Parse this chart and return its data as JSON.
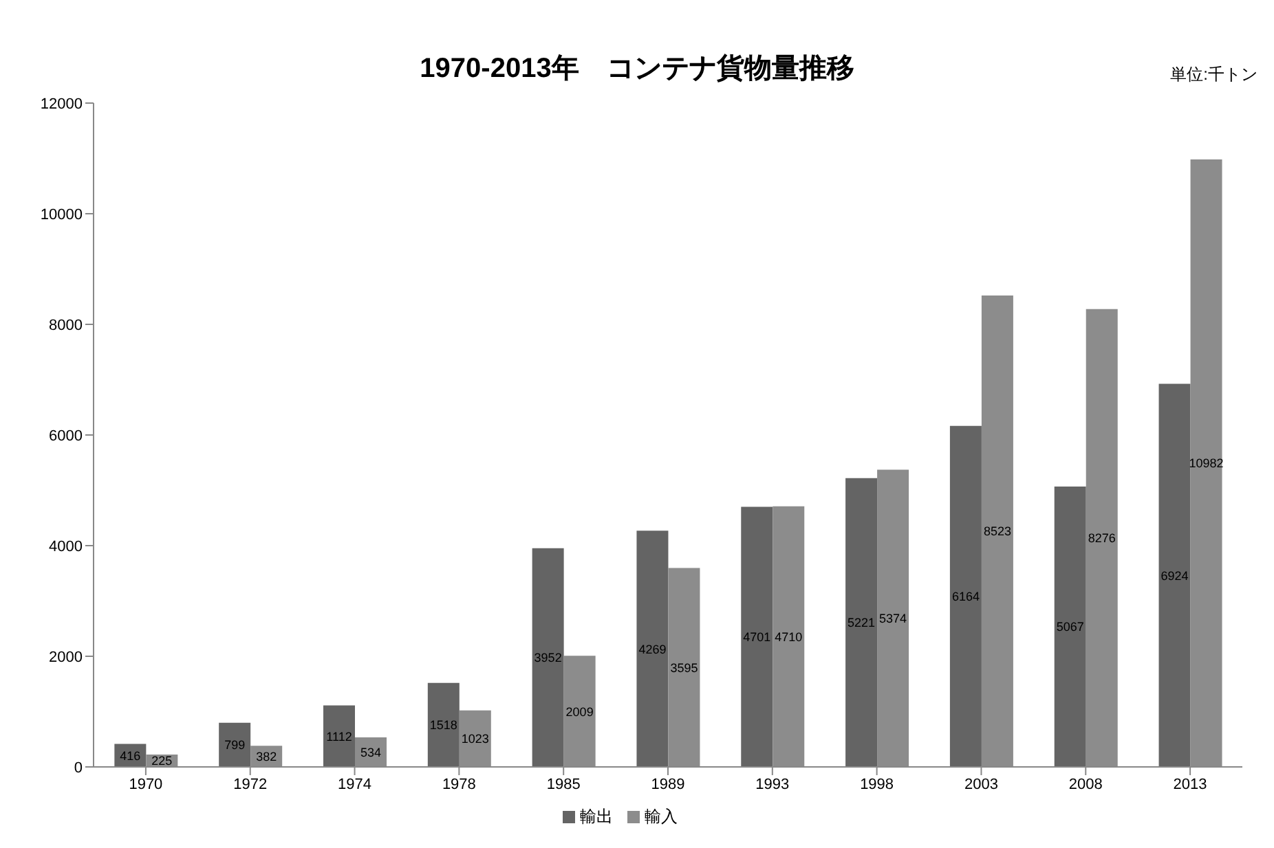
{
  "chart_data": {
    "type": "bar",
    "title": "1970-2013年　コンテナ貨物量推移",
    "annotations": [
      "単位:千トン"
    ],
    "categories": [
      "1970",
      "1972",
      "1974",
      "1978",
      "1985",
      "1989",
      "1993",
      "1998",
      "2003",
      "2008",
      "2013"
    ],
    "series": [
      {
        "name": "輸出",
        "color": "#646464",
        "values": [
          416,
          799,
          1112,
          1518,
          3952,
          4269,
          4701,
          5221,
          6164,
          5067,
          6924
        ]
      },
      {
        "name": "輸入",
        "color": "#8c8c8c",
        "values": [
          225,
          382,
          534,
          1023,
          2009,
          3595,
          4710,
          5374,
          8523,
          8276,
          10982
        ]
      }
    ],
    "ylim": [
      0,
      12000
    ],
    "yticks": [
      0,
      2000,
      4000,
      6000,
      8000,
      10000,
      12000
    ],
    "grid": false,
    "legend": "bottom",
    "data_labels": true
  }
}
